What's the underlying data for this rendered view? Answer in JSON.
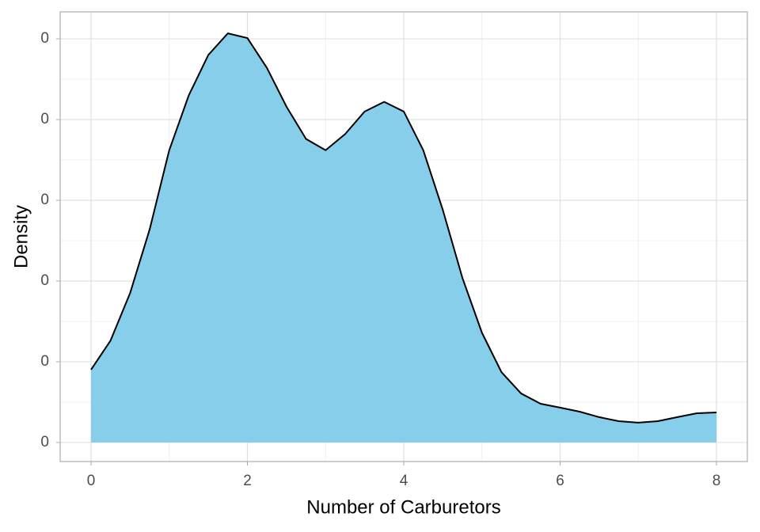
{
  "chart_data": {
    "type": "area",
    "x_label": "Number of Carburetors",
    "y_label": "Density",
    "x": [
      0,
      0.25,
      0.5,
      0.75,
      1,
      1.25,
      1.5,
      1.75,
      2,
      2.25,
      2.5,
      2.75,
      3,
      3.25,
      3.5,
      3.75,
      4,
      4.25,
      4.5,
      4.75,
      5,
      5.25,
      5.5,
      5.75,
      6,
      6.25,
      6.5,
      6.75,
      7,
      7.25,
      7.5,
      7.75,
      8
    ],
    "values": [
      0.0451,
      0.0632,
      0.0926,
      0.132,
      0.181,
      0.215,
      0.24,
      0.2534,
      0.2505,
      0.232,
      0.208,
      0.188,
      0.181,
      0.191,
      0.205,
      0.211,
      0.205,
      0.181,
      0.144,
      0.102,
      0.068,
      0.0436,
      0.0304,
      0.024,
      0.0216,
      0.0191,
      0.0157,
      0.0132,
      0.0123,
      0.0132,
      0.0157,
      0.0181,
      0.0186
    ],
    "color": "#87ceeb",
    "line_color": "#000000",
    "xlim": [
      -0.395,
      8.395
    ],
    "ylim": [
      -0.0118,
      0.2667
    ],
    "xticks": [
      0,
      2,
      4,
      6,
      8
    ],
    "yticks": [
      0,
      {
        "value": 0.05,
        "label": "0"
      },
      {
        "value": 0.1,
        "label": "0"
      },
      {
        "value": 0.15,
        "label": "0"
      },
      {
        "value": 0.2,
        "label": "0"
      },
      {
        "value": 0.25,
        "label": "0"
      }
    ],
    "grid": true
  }
}
